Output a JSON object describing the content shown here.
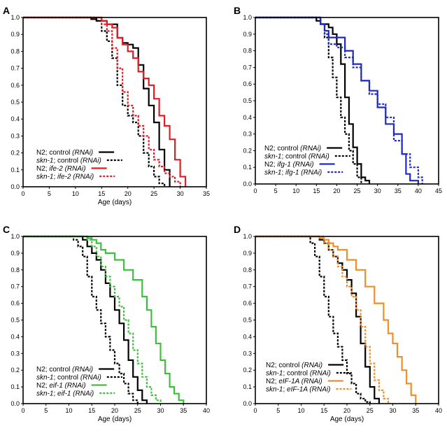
{
  "chart_data": [
    {
      "type": "line",
      "panel_label": "A",
      "xlabel": "Age (days)",
      "ylabel": "",
      "xlim": [
        0,
        35
      ],
      "ylim": [
        0,
        1.0
      ],
      "xticks": [
        "0",
        "5",
        "10",
        "15",
        "20",
        "25",
        "30",
        "35"
      ],
      "yticks": [
        "0.0",
        "0.1",
        "0.2",
        "0.3",
        "0.4",
        "0.5",
        "0.6",
        "0.7",
        "0.8",
        "0.9",
        "1.0"
      ],
      "legend_position": "bottom-left",
      "series": [
        {
          "legend_plain": "N2; control ",
          "legend_italic": "(RNAi)",
          "italic_first": false,
          "color": "#000000",
          "dash": "solid",
          "x": [
            0,
            13,
            14,
            16,
            18,
            19,
            20,
            21,
            22,
            23,
            24,
            25,
            26,
            27,
            28
          ],
          "y": [
            1.0,
            0.99,
            0.98,
            0.96,
            0.88,
            0.85,
            0.84,
            0.82,
            0.72,
            0.58,
            0.48,
            0.38,
            0.22,
            0.1,
            0.0
          ]
        },
        {
          "legend_plain": "; control ",
          "legend_italic": "(RNAi)",
          "legend_lead": "skn-1",
          "italic_first": true,
          "color": "#000000",
          "dash": "dotted",
          "x": [
            0,
            14,
            15,
            16,
            17,
            18,
            19,
            20,
            21,
            22,
            23,
            24,
            25,
            26,
            27
          ],
          "y": [
            1.0,
            0.98,
            0.92,
            0.86,
            0.76,
            0.6,
            0.48,
            0.42,
            0.38,
            0.3,
            0.2,
            0.12,
            0.06,
            0.02,
            0.0
          ]
        },
        {
          "legend_plain": "N2; ",
          "legend_italic": "ife-2 (RNAi)",
          "italic_first": false,
          "color": "#dd1f26",
          "dash": "solid",
          "x": [
            0,
            15,
            16,
            17,
            18,
            19,
            20,
            21,
            22,
            23,
            24,
            25,
            26,
            27,
            28,
            29,
            30,
            31
          ],
          "y": [
            1.0,
            0.98,
            0.96,
            0.94,
            0.88,
            0.84,
            0.8,
            0.76,
            0.68,
            0.64,
            0.6,
            0.52,
            0.42,
            0.36,
            0.28,
            0.16,
            0.06,
            0.0
          ]
        },
        {
          "legend_plain": "; ",
          "legend_italic": "ife-2 (RNAi)",
          "legend_lead": "skn-1",
          "italic_first": true,
          "color": "#dd1f26",
          "dash": "dotted",
          "x": [
            0,
            15,
            16,
            17,
            18,
            19,
            20,
            21,
            22,
            23,
            24,
            25,
            26,
            27,
            28,
            29,
            30
          ],
          "y": [
            1.0,
            0.96,
            0.92,
            0.82,
            0.7,
            0.56,
            0.48,
            0.42,
            0.36,
            0.3,
            0.22,
            0.16,
            0.12,
            0.08,
            0.06,
            0.03,
            0.0
          ]
        }
      ]
    },
    {
      "type": "line",
      "panel_label": "B",
      "xlabel": "",
      "ylabel": "",
      "xlim": [
        0,
        45
      ],
      "ylim": [
        0,
        1.0
      ],
      "xticks": [
        "0",
        "5",
        "10",
        "15",
        "20",
        "25",
        "30",
        "35",
        "40",
        "45"
      ],
      "yticks": [
        "0.0",
        "0.1",
        "0.2",
        "0.3",
        "0.4",
        "0.5",
        "0.6",
        "0.7",
        "0.8",
        "0.9",
        "1.0"
      ],
      "legend_position": "bottom-left",
      "series": [
        {
          "legend_plain": "N2; control ",
          "legend_italic": "(RNAi)",
          "italic_first": false,
          "color": "#000000",
          "dash": "solid",
          "x": [
            0,
            15,
            16,
            18,
            19,
            20,
            21,
            22,
            23,
            24,
            25,
            26,
            27,
            28
          ],
          "y": [
            1.0,
            0.98,
            0.96,
            0.94,
            0.9,
            0.84,
            0.72,
            0.52,
            0.36,
            0.22,
            0.12,
            0.04,
            0.02,
            0.0
          ]
        },
        {
          "legend_plain": "; control ",
          "legend_italic": "(RNAi)",
          "legend_lead": "skn-1",
          "italic_first": true,
          "color": "#000000",
          "dash": "dotted",
          "x": [
            0,
            16,
            17,
            18,
            19,
            20,
            21,
            22,
            23,
            24,
            25,
            26
          ],
          "y": [
            1.0,
            0.96,
            0.88,
            0.76,
            0.64,
            0.52,
            0.4,
            0.3,
            0.2,
            0.12,
            0.04,
            0.0
          ]
        },
        {
          "legend_plain": "N2; ",
          "legend_italic": "ifg-1 (RNAi)",
          "italic_first": false,
          "color": "#1f2bc0",
          "dash": "solid",
          "x": [
            0,
            16,
            17,
            18,
            20,
            22,
            24,
            26,
            28,
            30,
            32,
            34,
            36,
            37,
            38,
            40
          ],
          "y": [
            1.0,
            0.96,
            0.92,
            0.88,
            0.88,
            0.8,
            0.72,
            0.62,
            0.56,
            0.46,
            0.36,
            0.3,
            0.18,
            0.06,
            0.02,
            0.0
          ]
        },
        {
          "legend_plain": "; ",
          "legend_italic": "ifg-1 (RNAi)",
          "legend_lead": "skn-1",
          "italic_first": true,
          "color": "#1f2bc0",
          "dash": "dotted",
          "x": [
            0,
            16,
            17,
            18,
            20,
            22,
            24,
            26,
            28,
            30,
            32,
            34,
            36,
            38,
            40,
            41
          ],
          "y": [
            1.0,
            0.96,
            0.9,
            0.84,
            0.82,
            0.76,
            0.7,
            0.62,
            0.54,
            0.48,
            0.4,
            0.26,
            0.18,
            0.1,
            0.04,
            0.0
          ]
        }
      ]
    },
    {
      "type": "line",
      "panel_label": "C",
      "xlabel": "Age (days)",
      "ylabel": "",
      "xlim": [
        0,
        40
      ],
      "ylim": [
        0,
        1.0
      ],
      "xticks": [
        "0",
        "5",
        "10",
        "15",
        "20",
        "25",
        "30",
        "35",
        "40"
      ],
      "yticks": [
        "0.0",
        "0.1",
        "0.2",
        "0.3",
        "0.4",
        "0.5",
        "0.6",
        "0.7",
        "0.8",
        "0.9",
        "1.0"
      ],
      "legend_position": "bottom-left",
      "series": [
        {
          "legend_plain": "N2; control ",
          "legend_italic": "(RNAi)",
          "italic_first": false,
          "color": "#000000",
          "dash": "solid",
          "x": [
            0,
            13,
            14,
            15,
            16,
            17,
            18,
            19,
            20,
            21,
            22,
            23,
            24,
            25,
            26,
            27
          ],
          "y": [
            1.0,
            0.98,
            0.94,
            0.9,
            0.86,
            0.8,
            0.72,
            0.64,
            0.56,
            0.48,
            0.38,
            0.26,
            0.16,
            0.08,
            0.02,
            0.0
          ]
        },
        {
          "legend_plain": "; control ",
          "legend_italic": "(RNAi)",
          "legend_lead": "skn-1",
          "italic_first": true,
          "color": "#000000",
          "dash": "dotted",
          "x": [
            0,
            11,
            12,
            13,
            14,
            15,
            16,
            17,
            18,
            19,
            20,
            21,
            22,
            23,
            24,
            25
          ],
          "y": [
            1.0,
            0.98,
            0.94,
            0.88,
            0.76,
            0.64,
            0.56,
            0.48,
            0.4,
            0.32,
            0.24,
            0.18,
            0.12,
            0.06,
            0.02,
            0.0
          ]
        },
        {
          "legend_plain": "N2; ",
          "legend_italic": "eif-1 (RNAi)",
          "italic_first": false,
          "color": "#3cc13c",
          "dash": "solid",
          "x": [
            0,
            14,
            15,
            16,
            17,
            18,
            20,
            22,
            24,
            26,
            27,
            28,
            29,
            30,
            31,
            32,
            33,
            34,
            35
          ],
          "y": [
            1.0,
            0.99,
            0.98,
            0.96,
            0.92,
            0.9,
            0.86,
            0.8,
            0.74,
            0.64,
            0.56,
            0.46,
            0.36,
            0.26,
            0.18,
            0.1,
            0.06,
            0.02,
            0.0
          ]
        },
        {
          "legend_plain": "; ",
          "legend_italic": "eif-1 (RNAi)",
          "legend_lead": "skn-1",
          "italic_first": true,
          "color": "#3cc13c",
          "dash": "dotted",
          "x": [
            0,
            14,
            15,
            16,
            17,
            18,
            19,
            20,
            21,
            22,
            23,
            24,
            25,
            26,
            27,
            28,
            29,
            30
          ],
          "y": [
            1.0,
            0.98,
            0.94,
            0.88,
            0.82,
            0.76,
            0.7,
            0.64,
            0.58,
            0.5,
            0.42,
            0.32,
            0.24,
            0.16,
            0.1,
            0.05,
            0.02,
            0.0
          ]
        }
      ]
    },
    {
      "type": "line",
      "panel_label": "D",
      "xlabel": "Age (days)",
      "ylabel": "",
      "xlim": [
        0,
        40
      ],
      "ylim": [
        0,
        1.0
      ],
      "xticks": [
        "0",
        "5",
        "10",
        "15",
        "20",
        "25",
        "30",
        "35",
        "40"
      ],
      "yticks": [
        "0.0",
        "0.1",
        "0.2",
        "0.3",
        "0.4",
        "0.5",
        "0.6",
        "0.7",
        "0.8",
        "0.9",
        "1.0"
      ],
      "legend_position": "bottom-left",
      "series": [
        {
          "legend_plain": "N2; control ",
          "legend_italic": "(RNAi)",
          "italic_first": false,
          "color": "#000000",
          "dash": "solid",
          "x": [
            0,
            14,
            15,
            16,
            17,
            18,
            19,
            20,
            21,
            22,
            23,
            24,
            25,
            26,
            27
          ],
          "y": [
            1.0,
            0.98,
            0.96,
            0.92,
            0.88,
            0.84,
            0.8,
            0.74,
            0.66,
            0.52,
            0.36,
            0.22,
            0.1,
            0.03,
            0.0
          ]
        },
        {
          "legend_plain": "; control ",
          "legend_italic": "(RNAi)",
          "legend_lead": "skn-1",
          "italic_first": true,
          "color": "#000000",
          "dash": "dotted",
          "x": [
            0,
            12,
            13,
            14,
            15,
            16,
            17,
            18,
            19,
            20,
            21,
            22,
            23,
            24,
            25
          ],
          "y": [
            1.0,
            0.96,
            0.88,
            0.76,
            0.64,
            0.52,
            0.42,
            0.34,
            0.26,
            0.18,
            0.12,
            0.06,
            0.03,
            0.01,
            0.0
          ]
        },
        {
          "legend_plain": "N2; ",
          "legend_italic": "eIF-1A (RNAi)",
          "italic_first": false,
          "color": "#ef8e2a",
          "dash": "solid",
          "x": [
            0,
            14,
            15,
            16,
            17,
            18,
            20,
            22,
            24,
            26,
            28,
            29,
            30,
            31,
            32,
            33,
            34,
            35
          ],
          "y": [
            1.0,
            0.99,
            0.98,
            0.96,
            0.94,
            0.92,
            0.86,
            0.8,
            0.7,
            0.6,
            0.5,
            0.42,
            0.36,
            0.28,
            0.2,
            0.12,
            0.05,
            0.0
          ]
        },
        {
          "legend_plain": "; ",
          "legend_italic": "eIF-1A (RNAi)",
          "legend_lead": "skn-1",
          "italic_first": true,
          "color": "#ef8e2a",
          "dash": "dotted",
          "x": [
            0,
            15,
            16,
            17,
            18,
            19,
            20,
            21,
            22,
            23,
            24,
            25,
            26,
            27,
            28,
            29
          ],
          "y": [
            1.0,
            0.96,
            0.92,
            0.88,
            0.82,
            0.76,
            0.7,
            0.64,
            0.56,
            0.46,
            0.34,
            0.24,
            0.14,
            0.08,
            0.03,
            0.0
          ]
        }
      ]
    }
  ]
}
